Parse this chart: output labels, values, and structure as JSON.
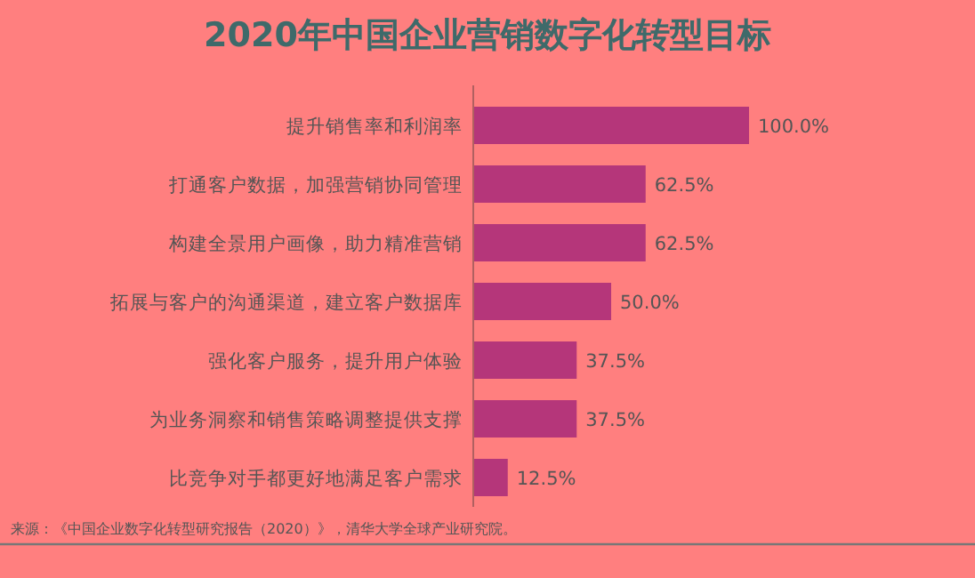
{
  "chart_data": {
    "type": "bar",
    "orientation": "horizontal",
    "title": "2020年中国企业营销数字化转型目标",
    "categories": [
      "提升销售率和利润率",
      "打通客户数据，加强营销协同管理",
      "构建全景用户画像，助力精准营销",
      "拓展与客户的沟通渠道，建立客户数据库",
      "强化客户服务，提升用户体验",
      "为业务洞察和销售策略调整提供支撑",
      "比竞争对手都更好地满足客户需求"
    ],
    "values": [
      100.0,
      62.5,
      62.5,
      50.0,
      37.5,
      37.5,
      12.5
    ],
    "color": "#b5367a",
    "value_labels": [
      "100.0%",
      "62.5%",
      "62.5%",
      "50.0%",
      "37.5%",
      "37.5%",
      "12.5%"
    ],
    "annotations": [
      "来源：《中国企业数字化转型研究报告（2020）》，清华大学全球产业研究院。"
    ]
  }
}
